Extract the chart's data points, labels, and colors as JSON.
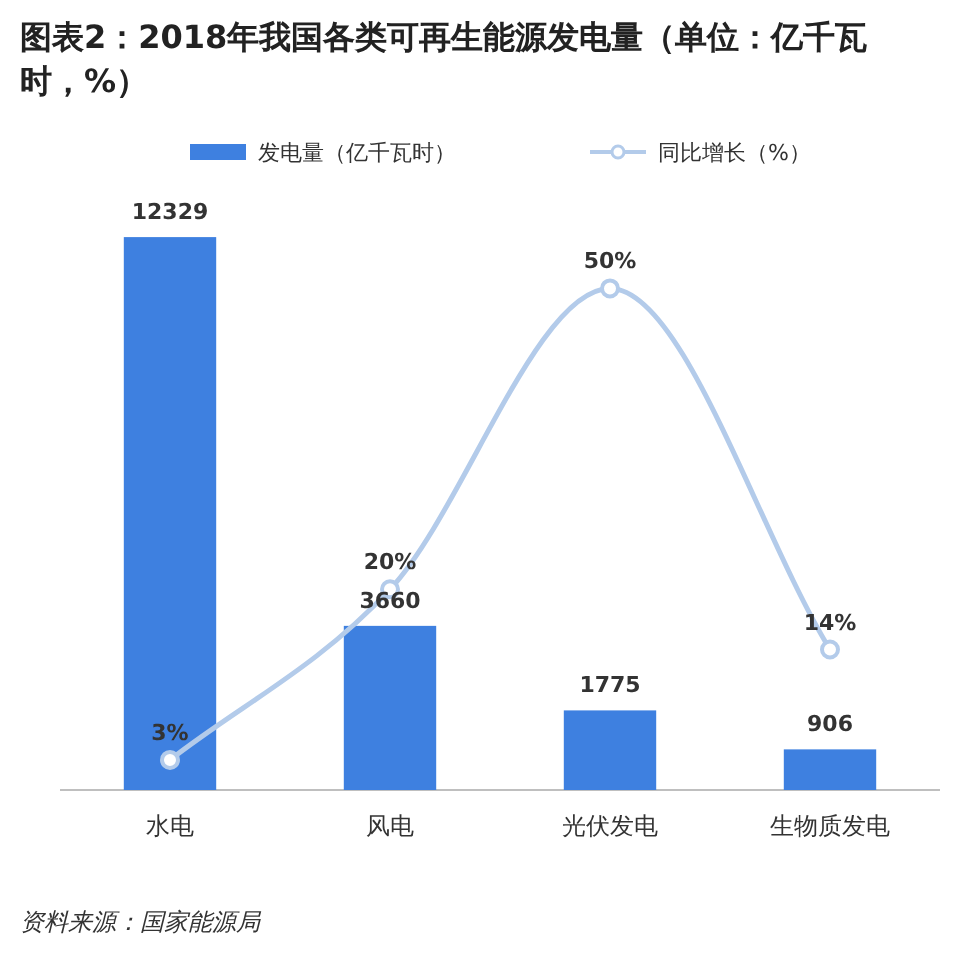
{
  "chart_data": {
    "type": "bar",
    "title": "图表2：2018年我国各类可再生能源发电量（单位：亿千瓦时，%）",
    "categories": [
      "水电",
      "风电",
      "光伏发电",
      "生物质发电"
    ],
    "series": [
      {
        "name": "发电量（亿千瓦时）",
        "color": "#3e80e0",
        "values": [
          12329,
          3660,
          1775,
          906
        ]
      },
      {
        "name": "同比增长（%）",
        "type": "line",
        "axis": "y2",
        "color": "#b3cbea",
        "values": [
          3,
          20,
          50,
          14
        ],
        "value_labels": [
          "3%",
          "20%",
          "50%",
          "14%"
        ]
      }
    ],
    "data_labels": true,
    "marker": "circle",
    "line_style": "solid",
    "legend": "top",
    "annotations": [
      "资料来源：国家能源局"
    ]
  }
}
